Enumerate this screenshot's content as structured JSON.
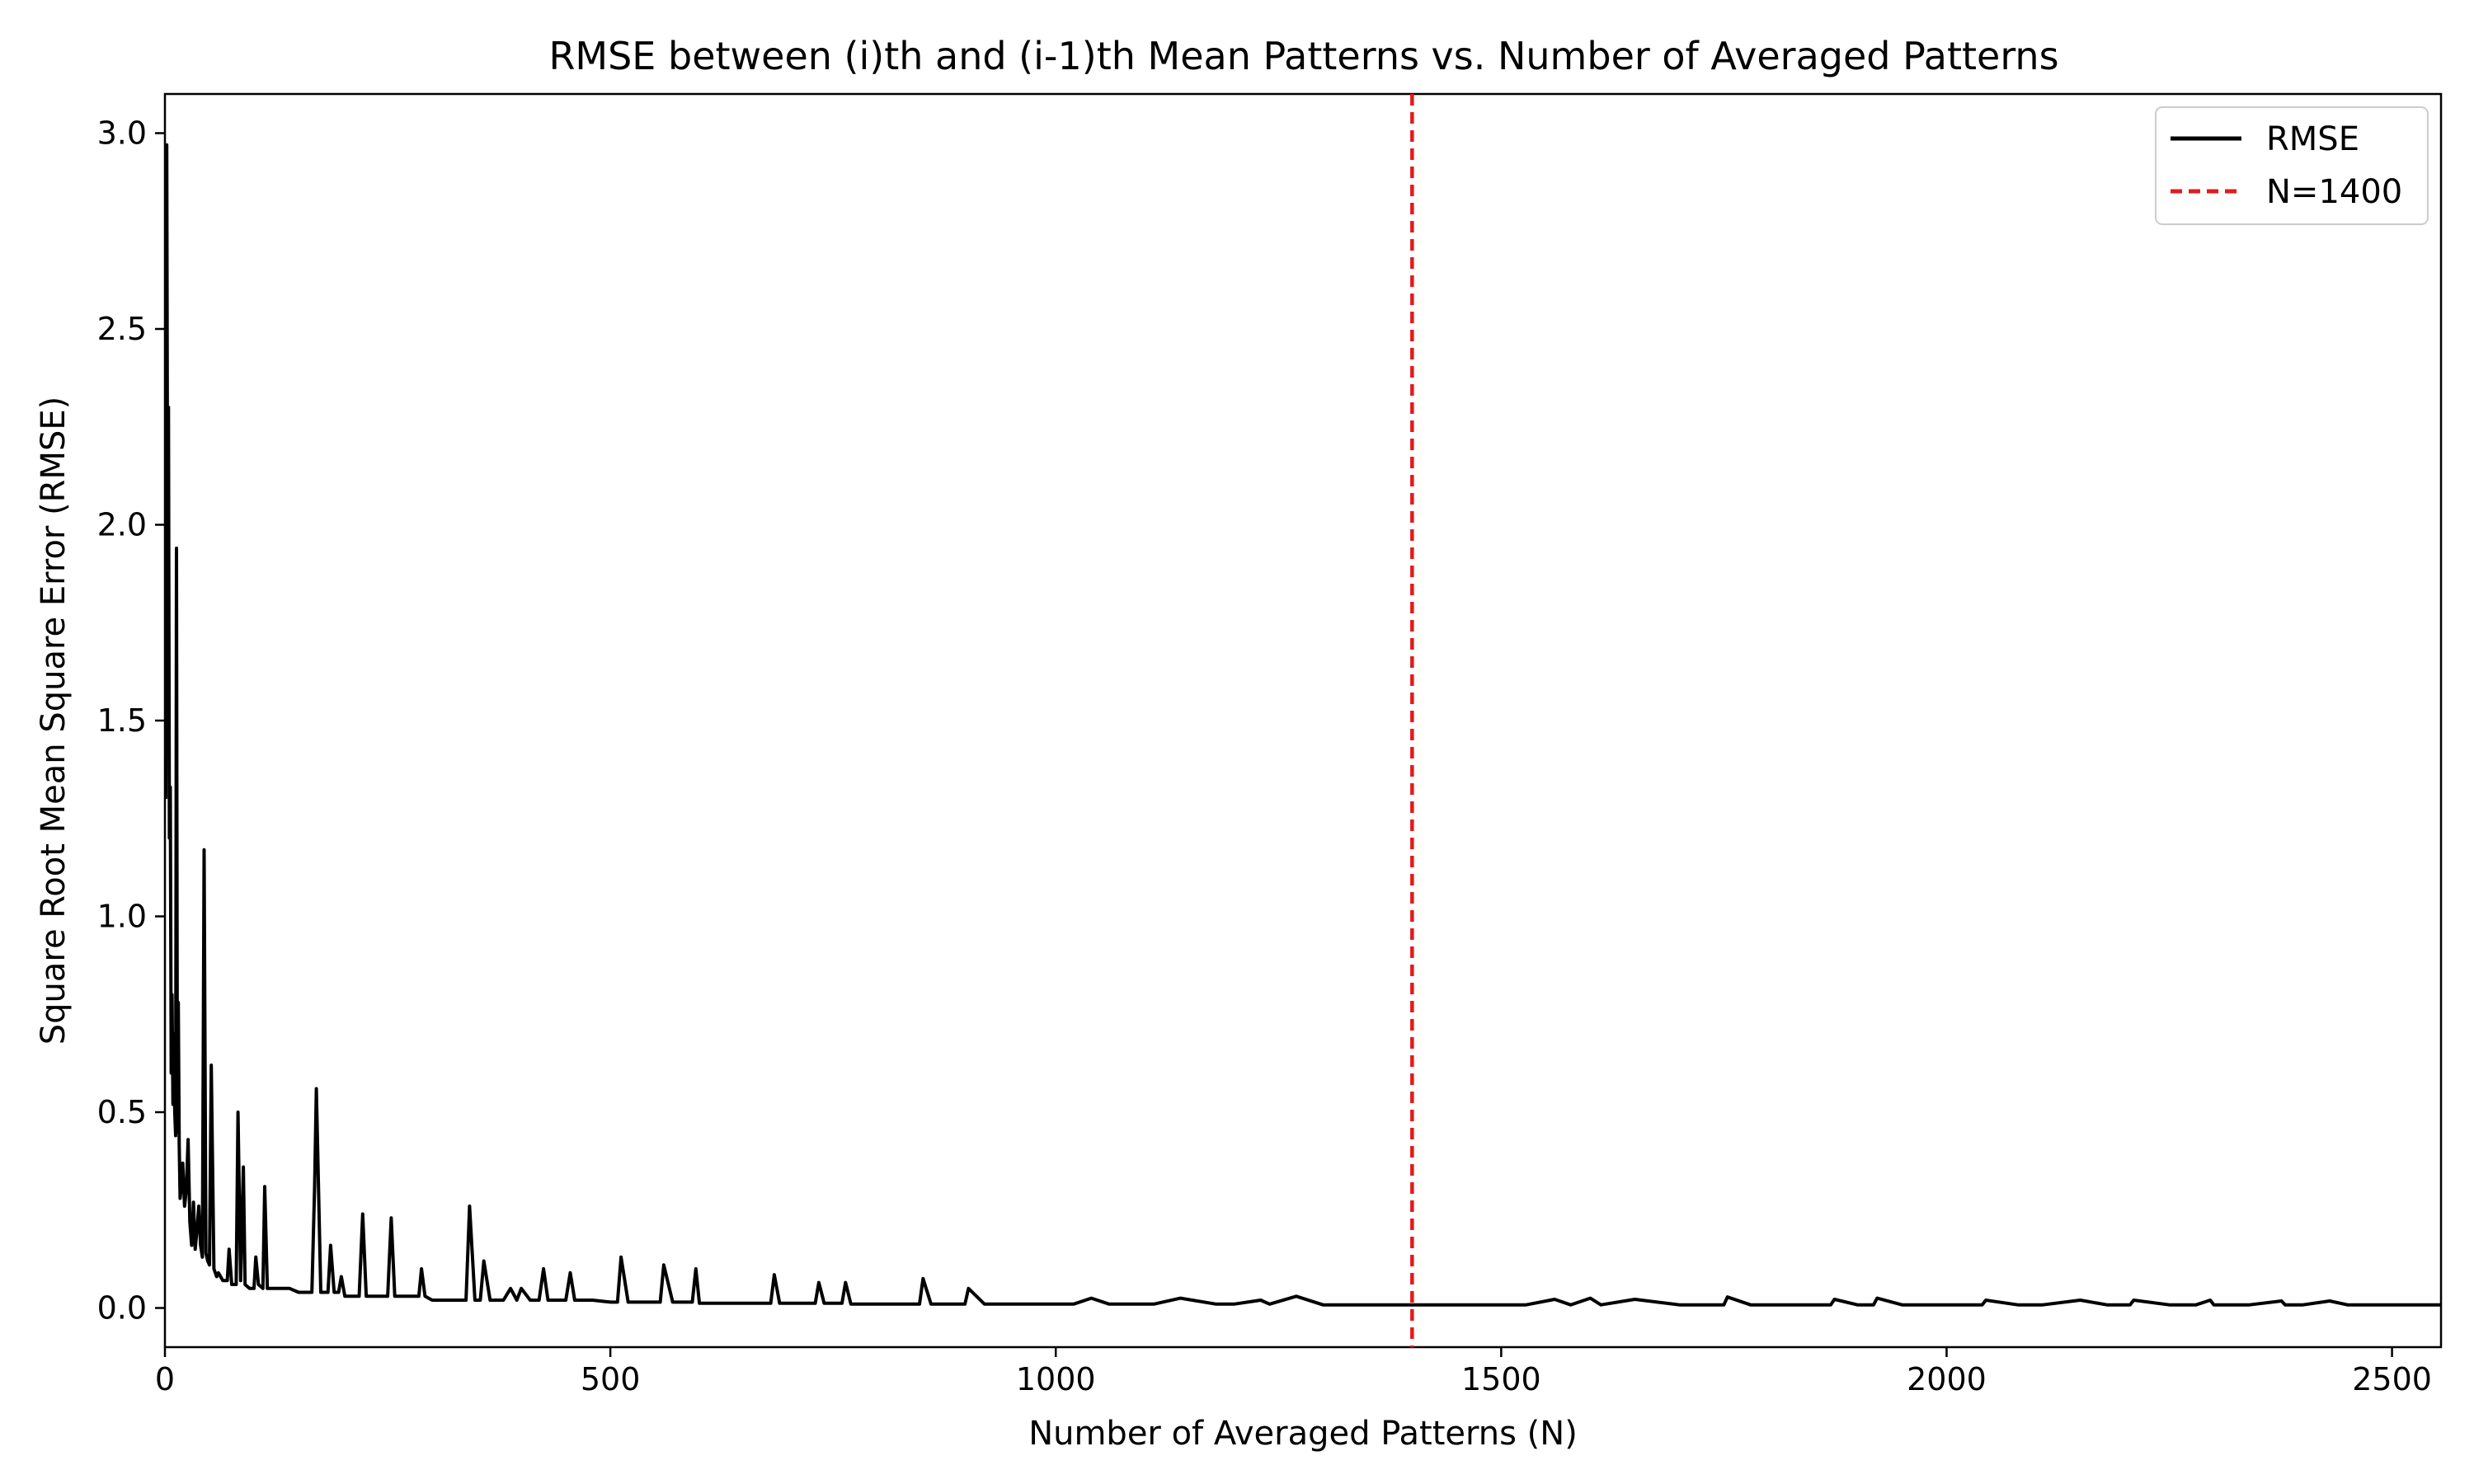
{
  "chart_data": {
    "type": "line",
    "title": "RMSE between (i)th and (i-1)th Mean Patterns vs. Number of Averaged Patterns",
    "xlabel": "Number of Averaged Patterns (N)",
    "ylabel": "Square Root Mean Square Error (RMSE)",
    "xlim": [
      0,
      2555
    ],
    "ylim": [
      -0.1,
      3.1
    ],
    "x_ticks": [
      0,
      500,
      1000,
      1500,
      2000,
      2500
    ],
    "x_tick_labels": [
      "0",
      "500",
      "1000",
      "1500",
      "2000",
      "2500"
    ],
    "y_ticks": [
      0.0,
      0.5,
      1.0,
      1.5,
      2.0,
      2.5,
      3.0
    ],
    "y_tick_labels": [
      "0.0",
      "0.5",
      "1.0",
      "1.5",
      "2.0",
      "2.5",
      "3.0"
    ],
    "grid": false,
    "legend_position": "top-right",
    "series": [
      {
        "name": "RMSE",
        "color": "#000000",
        "style": "solid",
        "x": [
          1,
          2,
          3,
          4,
          5,
          6,
          7,
          8,
          9,
          10,
          11,
          12,
          13,
          14,
          15,
          16,
          17,
          18,
          19,
          20,
          22,
          24,
          26,
          28,
          30,
          32,
          34,
          36,
          38,
          40,
          42,
          44,
          46,
          48,
          50,
          52,
          55,
          58,
          60,
          65,
          70,
          72,
          75,
          80,
          82,
          85,
          88,
          90,
          95,
          100,
          102,
          105,
          110,
          112,
          115,
          120,
          130,
          140,
          150,
          160,
          165,
          168,
          170,
          175,
          180,
          183,
          186,
          190,
          195,
          198,
          202,
          210,
          218,
          222,
          226,
          230,
          240,
          250,
          254,
          258,
          265,
          275,
          285,
          288,
          292,
          300,
          320,
          338,
          342,
          348,
          354,
          358,
          365,
          380,
          388,
          395,
          400,
          410,
          420,
          425,
          430,
          440,
          450,
          455,
          460,
          480,
          500,
          508,
          512,
          520,
          540,
          556,
          560,
          570,
          580,
          592,
          596,
          600,
          620,
          640,
          680,
          684,
          690,
          700,
          730,
          734,
          740,
          760,
          764,
          770,
          790,
          800,
          820,
          847,
          851,
          860,
          890,
          898,
          902,
          920,
          940,
          960,
          1000,
          1020,
          1040,
          1060,
          1080,
          1100,
          1110,
          1140,
          1180,
          1190,
          1200,
          1230,
          1240,
          1270,
          1300,
          1340,
          1360,
          1380,
          1400,
          1440,
          1480,
          1520,
          1528,
          1560,
          1578,
          1600,
          1612,
          1650,
          1700,
          1704,
          1750,
          1754,
          1780,
          1800,
          1850,
          1870,
          1874,
          1900,
          1918,
          1922,
          1950,
          1970,
          2000,
          2040,
          2044,
          2080,
          2100,
          2108,
          2150,
          2180,
          2206,
          2210,
          2250,
          2280,
          2296,
          2300,
          2340,
          2376,
          2380,
          2400,
          2430,
          2450,
          2500,
          2530,
          2555
        ],
        "y": [
          1.3,
          2.97,
          2.0,
          2.3,
          1.2,
          1.33,
          0.6,
          0.8,
          0.52,
          0.7,
          0.5,
          0.44,
          1.94,
          0.45,
          0.78,
          0.42,
          0.28,
          0.3,
          0.35,
          0.37,
          0.26,
          0.3,
          0.43,
          0.22,
          0.16,
          0.27,
          0.15,
          0.2,
          0.26,
          0.16,
          0.13,
          1.17,
          0.14,
          0.12,
          0.11,
          0.62,
          0.1,
          0.08,
          0.09,
          0.07,
          0.07,
          0.15,
          0.06,
          0.06,
          0.5,
          0.07,
          0.36,
          0.06,
          0.05,
          0.05,
          0.13,
          0.06,
          0.05,
          0.31,
          0.05,
          0.05,
          0.05,
          0.05,
          0.04,
          0.04,
          0.04,
          0.31,
          0.56,
          0.04,
          0.04,
          0.04,
          0.16,
          0.04,
          0.04,
          0.08,
          0.03,
          0.03,
          0.03,
          0.24,
          0.03,
          0.03,
          0.03,
          0.03,
          0.23,
          0.03,
          0.03,
          0.03,
          0.03,
          0.1,
          0.03,
          0.02,
          0.02,
          0.02,
          0.26,
          0.02,
          0.02,
          0.12,
          0.02,
          0.02,
          0.05,
          0.02,
          0.05,
          0.02,
          0.02,
          0.1,
          0.02,
          0.02,
          0.02,
          0.09,
          0.02,
          0.02,
          0.015,
          0.015,
          0.13,
          0.015,
          0.015,
          0.015,
          0.11,
          0.015,
          0.015,
          0.015,
          0.1,
          0.012,
          0.012,
          0.012,
          0.012,
          0.085,
          0.012,
          0.012,
          0.012,
          0.065,
          0.012,
          0.012,
          0.065,
          0.01,
          0.01,
          0.01,
          0.01,
          0.01,
          0.075,
          0.01,
          0.01,
          0.01,
          0.05,
          0.01,
          0.01,
          0.01,
          0.01,
          0.01,
          0.025,
          0.01,
          0.01,
          0.01,
          0.01,
          0.025,
          0.01,
          0.01,
          0.01,
          0.02,
          0.01,
          0.03,
          0.008,
          0.008,
          0.008,
          0.008,
          0.008,
          0.008,
          0.008,
          0.008,
          0.008,
          0.022,
          0.008,
          0.025,
          0.008,
          0.022,
          0.008,
          0.008,
          0.008,
          0.028,
          0.008,
          0.008,
          0.008,
          0.008,
          0.022,
          0.008,
          0.008,
          0.025,
          0.008,
          0.008,
          0.008,
          0.008,
          0.02,
          0.008,
          0.008,
          0.008,
          0.02,
          0.008,
          0.008,
          0.02,
          0.008,
          0.008,
          0.02,
          0.008,
          0.008,
          0.018,
          0.008,
          0.008,
          0.018,
          0.008,
          0.008,
          0.008,
          0.008
        ]
      },
      {
        "name": "N=1400",
        "color": "#e31a1c",
        "style": "dashed",
        "vline_x": 1400
      }
    ]
  }
}
